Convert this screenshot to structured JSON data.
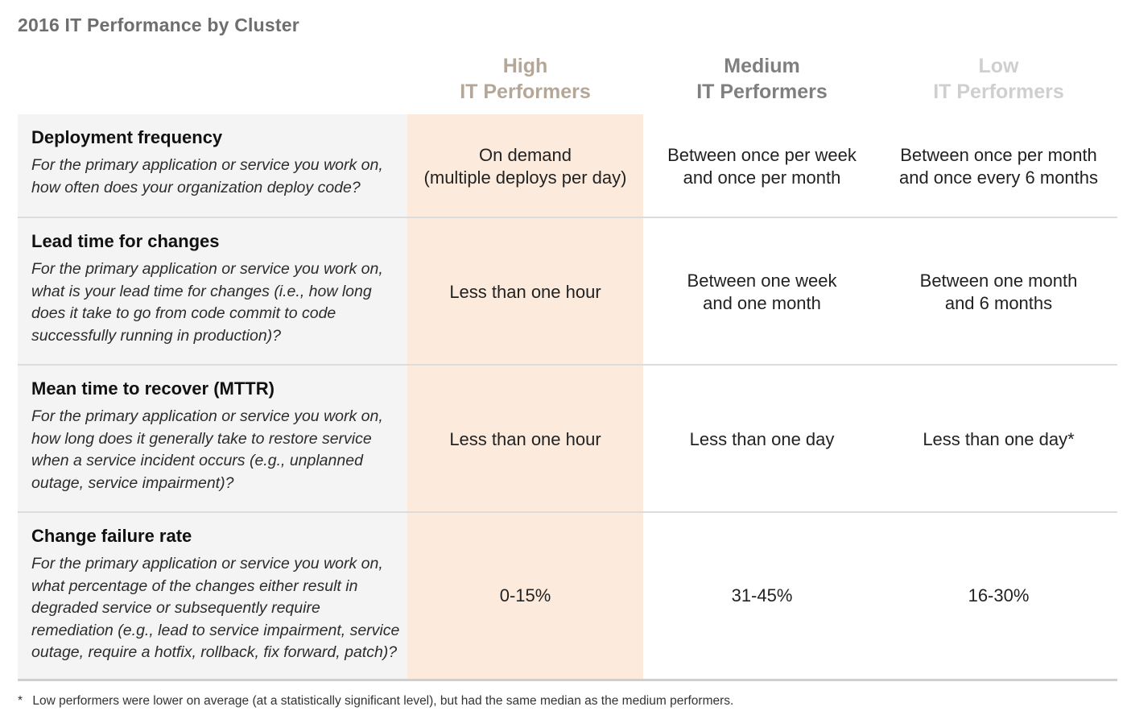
{
  "title": "2016 IT Performance by Cluster",
  "columns": {
    "high": {
      "line1": "High",
      "line2": "IT Performers"
    },
    "medium": {
      "line1": "Medium",
      "line2": "IT Performers"
    },
    "low": {
      "line1": "Low",
      "line2": "IT Performers"
    }
  },
  "rows": [
    {
      "name": "Deployment frequency",
      "question": "For the primary application or service you work on, how often does your organization deploy code?",
      "high": "On demand\n(multiple deploys per day)",
      "medium": "Between once per week\nand once per month",
      "low": "Between once per month\nand once every 6 months"
    },
    {
      "name": "Lead time for changes",
      "question": "For the primary application or service you work on, what is your lead time for changes (i.e., how long does it take to go from code commit to code successfully running in production)?",
      "high": "Less than one hour",
      "medium": "Between one week\nand one month",
      "low": "Between one month\nand 6 months"
    },
    {
      "name": "Mean time to recover (MTTR)",
      "question": "For the primary application or service you work on, how long does it generally take to restore service when a service incident occurs (e.g., unplanned outage, service impairment)?",
      "high": "Less than one hour",
      "medium": "Less than one day",
      "low": "Less than one day*"
    },
    {
      "name": "Change failure rate",
      "question": "For the primary application or service you work on, what percentage of the changes either result in degraded service or subsequently require remediation (e.g., lead to service impairment, service outage, require a hotfix, rollback, fix forward, patch)?",
      "high": "0-15%",
      "medium": "31-45%",
      "low": "16-30%"
    }
  ],
  "footnote": {
    "marker": "*",
    "text": "Low performers were lower on average (at a statistically significant level), but had the same median as the medium performers."
  }
}
